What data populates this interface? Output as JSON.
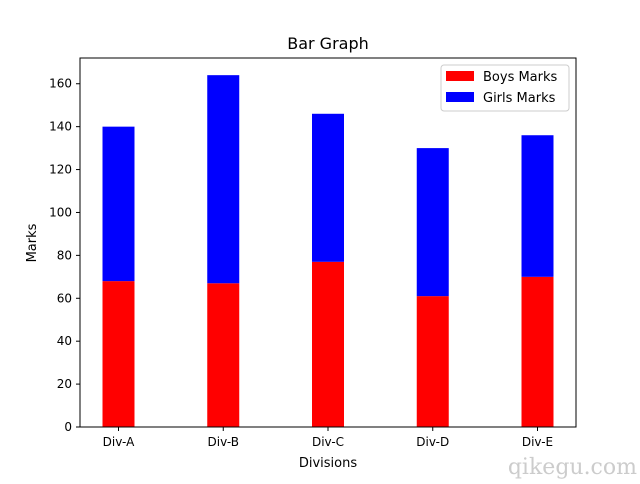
{
  "chart_data": {
    "type": "bar",
    "stacked": true,
    "title": "Bar Graph",
    "xlabel": "Divisions",
    "ylabel": "Marks",
    "categories": [
      "Div-A",
      "Div-B",
      "Div-C",
      "Div-D",
      "Div-E"
    ],
    "series": [
      {
        "name": "Boys Marks",
        "color": "#ff0000",
        "values": [
          68,
          67,
          77,
          61,
          70
        ]
      },
      {
        "name": "Girls Marks",
        "color": "#0000ff",
        "values": [
          72,
          97,
          69,
          69,
          66
        ]
      }
    ],
    "ylim": [
      0,
      172
    ],
    "yticks": [
      "0",
      "20",
      "40",
      "60",
      "80",
      "100",
      "120",
      "140",
      "160"
    ],
    "yticks_values": [
      0,
      20,
      40,
      60,
      80,
      100,
      120,
      140,
      160
    ],
    "grid": false,
    "legend_position": "top-right"
  },
  "watermark": "qikegu.com"
}
